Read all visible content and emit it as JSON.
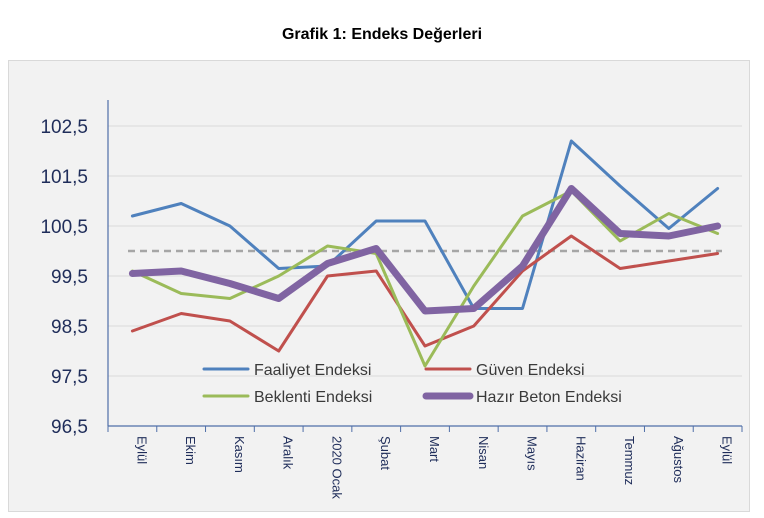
{
  "chart_data": {
    "type": "line",
    "title": "Grafik 1: Endeks Değerleri",
    "categories": [
      "Eylül",
      "Ekim",
      "Kasım",
      "Aralık",
      "2020 Ocak",
      "Şubat",
      "Mart",
      "Nisan",
      "Mayıs",
      "Haziran",
      "Temmuz",
      "Ağustos",
      "Eylül"
    ],
    "yticks": [
      "102,5",
      "101,5",
      "100,5",
      "99,5",
      "98,5",
      "97,5",
      "96,5"
    ],
    "ylim": [
      96.5,
      103.3
    ],
    "reference_line": 100,
    "grid": true,
    "legend_position": "bottom-center inside plot",
    "series": [
      {
        "name": "Faaliyet Endeksi",
        "color": "#4f81bd",
        "width": 3,
        "values": [
          100.7,
          100.95,
          100.5,
          99.65,
          99.7,
          100.6,
          100.6,
          98.85,
          98.85,
          102.2,
          101.3,
          100.45,
          101.25
        ]
      },
      {
        "name": "Güven Endeksi",
        "color": "#c0504d",
        "width": 3,
        "values": [
          98.4,
          98.75,
          98.6,
          98.0,
          99.5,
          99.6,
          98.1,
          98.5,
          99.6,
          100.3,
          99.65,
          99.8,
          99.95
        ]
      },
      {
        "name": "Beklenti Endeksi",
        "color": "#9bbb59",
        "width": 3,
        "values": [
          99.6,
          99.15,
          99.05,
          99.5,
          100.1,
          99.95,
          97.7,
          99.3,
          100.7,
          101.2,
          100.2,
          100.75,
          100.35
        ]
      },
      {
        "name": "Hazır Beton Endeksi",
        "color": "#8064a2",
        "width": 7,
        "values": [
          99.55,
          99.6,
          99.35,
          99.05,
          99.75,
          100.05,
          98.8,
          98.85,
          99.7,
          101.25,
          100.35,
          100.3,
          100.5
        ]
      }
    ]
  }
}
